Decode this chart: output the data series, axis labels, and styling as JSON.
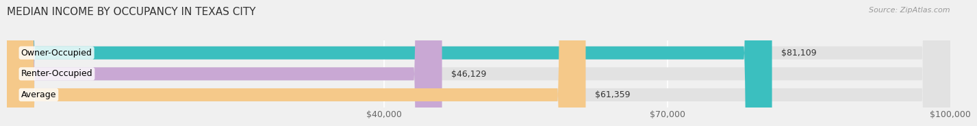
{
  "title": "MEDIAN INCOME BY OCCUPANCY IN TEXAS CITY",
  "source": "Source: ZipAtlas.com",
  "categories": [
    "Owner-Occupied",
    "Renter-Occupied",
    "Average"
  ],
  "values": [
    81109,
    46129,
    61359
  ],
  "bar_colors": [
    "#3bbfbf",
    "#c9a8d4",
    "#f5c98a"
  ],
  "bar_labels": [
    "$81,109",
    "$46,129",
    "$61,359"
  ],
  "xlim": [
    0,
    100000
  ],
  "xticks": [
    40000,
    70000,
    100000
  ],
  "xtick_labels": [
    "$40,000",
    "$70,000",
    "$100,000"
  ],
  "background_color": "#f0f0f0",
  "bar_bg_color": "#e2e2e2",
  "title_fontsize": 11,
  "label_fontsize": 9,
  "value_fontsize": 9,
  "source_fontsize": 8
}
